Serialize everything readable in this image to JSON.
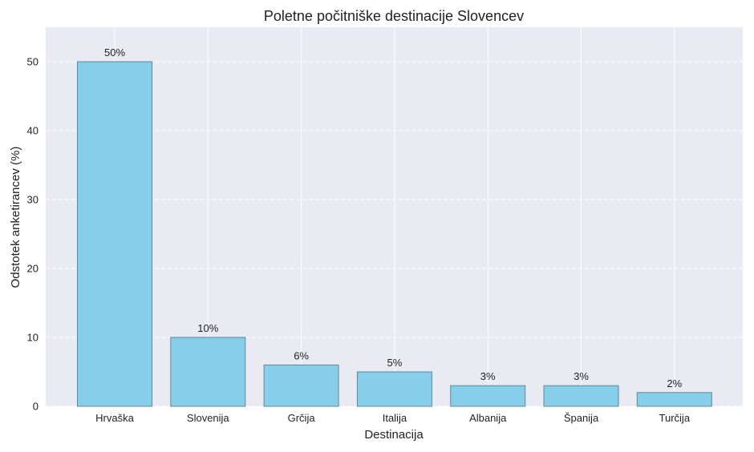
{
  "chart_data": {
    "type": "bar",
    "title": "Poletne počitniške destinacije Slovencev",
    "xlabel": "Destinacija",
    "ylabel": "Odstotek anketirancev (%)",
    "categories": [
      "Hrvaška",
      "Slovenija",
      "Grčija",
      "Italija",
      "Albanija",
      "Španija",
      "Turčija"
    ],
    "values": [
      50,
      10,
      6,
      5,
      3,
      3,
      2
    ],
    "value_labels": [
      "50%",
      "10%",
      "6%",
      "5%",
      "3%",
      "3%",
      "2%"
    ],
    "ylim": [
      0,
      55
    ],
    "yticks": [
      0,
      10,
      20,
      30,
      40,
      50
    ],
    "grid": true,
    "bar_color": "#87ceeb",
    "bar_edge_color": "#5f8a99",
    "background_color": "#eaeaf2"
  }
}
